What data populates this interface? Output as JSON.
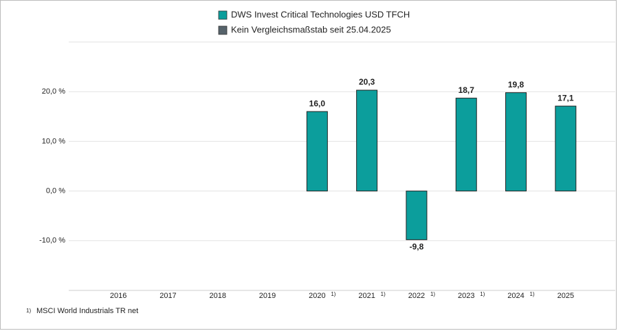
{
  "chart_data": {
    "type": "bar",
    "categories": [
      "2016",
      "2017",
      "2018",
      "2019",
      "2020",
      "2021",
      "2022",
      "2023",
      "2024",
      "2025"
    ],
    "category_notes": [
      null,
      null,
      null,
      null,
      "1)",
      "1)",
      "1)",
      "1)",
      "1)",
      null
    ],
    "series": [
      {
        "name": "DWS Invest Critical Technologies USD TFCH",
        "color": "#0c9e9c",
        "values": [
          null,
          null,
          null,
          null,
          16.0,
          20.3,
          -9.8,
          18.7,
          19.8,
          17.1
        ],
        "value_labels": [
          null,
          null,
          null,
          null,
          "16,0",
          "20,3",
          "-9,8",
          "18,7",
          "19,8",
          "17,1"
        ]
      },
      {
        "name": "Kein Vergleichsmaßstab seit 25.04.2025",
        "color": "#56636b",
        "values": [
          null,
          null,
          null,
          null,
          null,
          null,
          null,
          null,
          null,
          null
        ]
      }
    ],
    "ylim": [
      -20,
      30
    ],
    "yticks": [
      {
        "value": 20,
        "label": "20,0 %"
      },
      {
        "value": 10,
        "label": "10,0 %"
      },
      {
        "value": 0,
        "label": "0,0 %"
      },
      {
        "value": -10,
        "label": "-10,0 %"
      }
    ],
    "grid": true,
    "footnote": {
      "marker": "1)",
      "text": "MSCI World Industrials TR net"
    }
  }
}
